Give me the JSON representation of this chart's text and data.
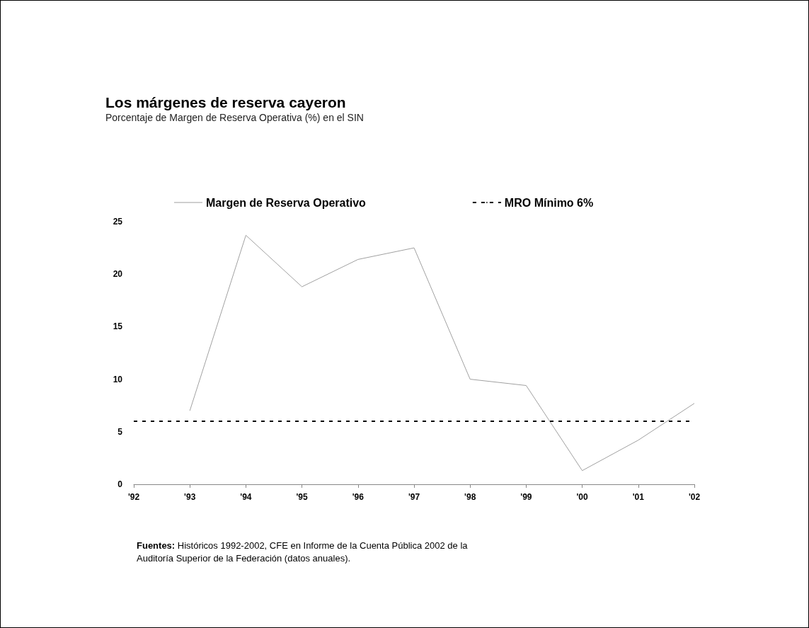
{
  "chart_data": {
    "type": "line",
    "title": "Los márgenes de reserva cayeron",
    "subtitle": "Porcentaje de Margen de Reserva Operativa (%) en el SIN",
    "categories": [
      "'92",
      "'93",
      "'94",
      "'95",
      "'96",
      "'97",
      "'98",
      "'99",
      "'00",
      "'01",
      "'02"
    ],
    "series": [
      {
        "name": "Margen de Reserva Operativo",
        "color": "#a0a0a0",
        "values": [
          null,
          7.0,
          23.7,
          18.8,
          21.4,
          22.5,
          10.0,
          9.4,
          1.3,
          4.2,
          7.7
        ]
      }
    ],
    "ref_lines": [
      {
        "axis": "y",
        "value": 6,
        "label": "MRO Mínimo 6%",
        "color": "#000000",
        "line_style": "dashed"
      }
    ],
    "ylim": [
      0,
      25
    ],
    "yticks": [
      0,
      5,
      10,
      15,
      20,
      25
    ],
    "grid": false,
    "legend": "top",
    "marker": "none",
    "line_style": "solid",
    "annotations": [
      "Fuentes: Históricos 1992-2002, CFE en Informe de la Cuenta Pública 2002 de la Auditoría Superior de la Federación (datos anuales)."
    ]
  }
}
